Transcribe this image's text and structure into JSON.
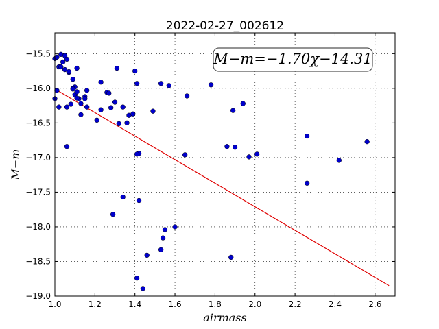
{
  "chart_data": {
    "type": "scatter",
    "title": "2022-02-27_002612",
    "xlabel": "airmass",
    "ylabel": "M−m",
    "xlim": [
      1.0,
      2.7
    ],
    "ylim": [
      -19.0,
      -15.2
    ],
    "y_inverted": false,
    "grid": true,
    "x_ticks": [
      "1.0",
      "1.2",
      "1.4",
      "1.6",
      "1.8",
      "2.0",
      "2.2",
      "2.4",
      "2.6"
    ],
    "y_ticks": [
      "−15.5",
      "−16.0",
      "−16.5",
      "−17.0",
      "−17.5",
      "−18.0",
      "−18.5",
      "−19.0"
    ],
    "annotation": "M−m=−1.70χ−14.31",
    "fit_line": {
      "slope": -1.7,
      "intercept": -14.31,
      "x_range": [
        1.0,
        2.67
      ],
      "color": "#e00000"
    },
    "point_color": "#0000cc",
    "series": [
      {
        "x": [
          1.0,
          1.01,
          1.0,
          1.02,
          1.01,
          1.03,
          1.02,
          1.04,
          1.05,
          1.03,
          1.05,
          1.06,
          1.07,
          1.06,
          1.08,
          1.09,
          1.1,
          1.11,
          1.09,
          1.1,
          1.11,
          1.12,
          1.07,
          1.09,
          1.11,
          1.13,
          1.15,
          1.15,
          1.16,
          1.16,
          1.13,
          1.06,
          1.21,
          1.23,
          1.23,
          1.26,
          1.27,
          1.28,
          1.31,
          1.3,
          1.32,
          1.34,
          1.36,
          1.37,
          1.39,
          1.4,
          1.41,
          1.42,
          1.41,
          1.49,
          1.53,
          1.57,
          1.66,
          1.78,
          1.86,
          1.9,
          1.89,
          1.94,
          1.97,
          2.01,
          2.26,
          2.26,
          2.42,
          2.56,
          1.34,
          1.29,
          1.42,
          1.55,
          1.6,
          1.54,
          1.53,
          1.46,
          1.88,
          1.41,
          1.44,
          1.65
        ],
        "y": [
          -15.57,
          -15.55,
          -16.15,
          -15.69,
          -16.03,
          -15.51,
          -16.27,
          -15.62,
          -15.53,
          -15.69,
          -15.73,
          -15.58,
          -15.77,
          -16.27,
          -16.23,
          -15.87,
          -15.98,
          -15.71,
          -16.0,
          -16.09,
          -16.05,
          -16.15,
          -15.76,
          -16.01,
          -16.14,
          -16.38,
          -16.12,
          -16.15,
          -16.03,
          -16.27,
          -16.22,
          -16.84,
          -16.46,
          -15.91,
          -16.31,
          -16.06,
          -16.07,
          -16.28,
          -15.71,
          -16.2,
          -16.51,
          -16.27,
          -16.5,
          -16.39,
          -16.37,
          -15.75,
          -15.93,
          -16.94,
          -16.95,
          -16.33,
          -15.93,
          -15.96,
          -16.11,
          -15.95,
          -16.84,
          -16.85,
          -16.32,
          -16.22,
          -16.99,
          -16.95,
          -16.69,
          -17.37,
          -17.04,
          -16.77,
          -17.57,
          -17.82,
          -17.62,
          -18.04,
          -18.0,
          -18.16,
          -18.33,
          -18.41,
          -18.44,
          -18.74,
          -18.89,
          -16.96
        ]
      }
    ]
  }
}
